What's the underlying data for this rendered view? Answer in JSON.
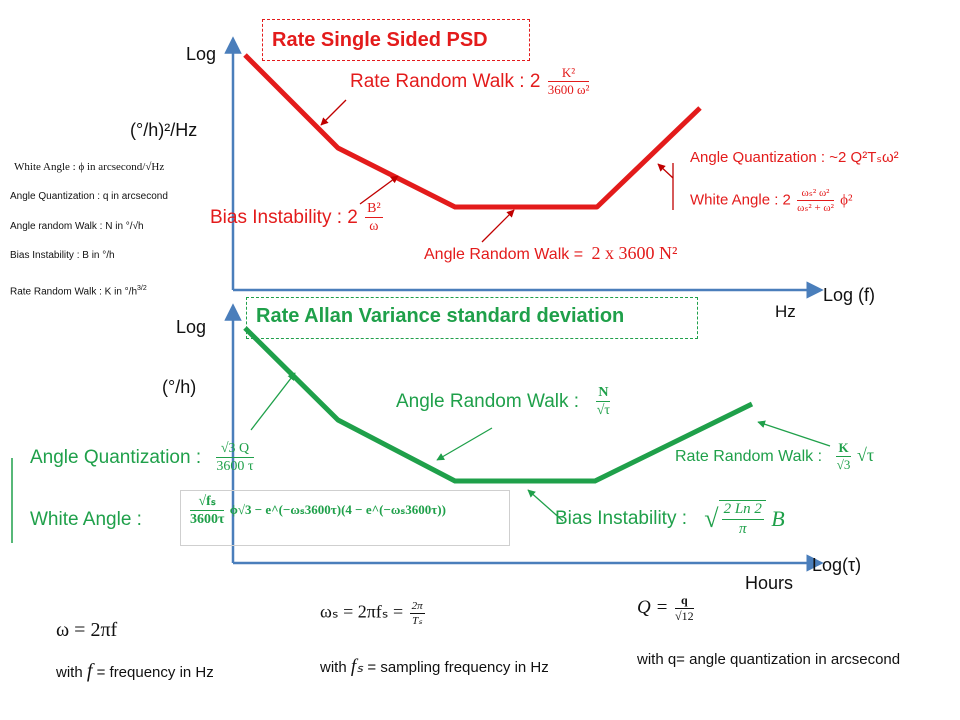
{
  "psd": {
    "title": "Rate Single Sided PSD",
    "y_axis_top": "Log",
    "y_axis_unit": "(°/h)²/Hz",
    "x_axis_label": "Log (f)",
    "x_axis_unit": "Hz",
    "rrw_prefix": "Rate Random Walk : 2",
    "rrw_num": "K²",
    "rrw_den": "3600 ω²",
    "bias_prefix": "Bias Instability : 2",
    "bias_num": "B²",
    "bias_den": "ω",
    "arw_label": "Angle Random Walk =",
    "arw_value": "2 x 3600 N²",
    "aq_label": "Angle Quantization : ~2 Q²Tₛω²",
    "wa_prefix": "White Angle : 2",
    "wa_num": "ωₛ² ω²",
    "wa_den": "ωₛ² + ω²",
    "wa_suffix": "ϕ²"
  },
  "legend": {
    "white_angle": "White Angle : ϕ in arcsecond/√Hz",
    "angle_quant": "Angle Quantization : q in arcsecond",
    "angle_rw": "Angle random Walk : N in °/√h",
    "bias_inst": "Bias Instability : B in °/h",
    "rate_rw": "Rate Random Walk : K in °/h",
    "rate_rw_exp": "3/2"
  },
  "allan": {
    "title": "Rate Allan Variance standard deviation",
    "y_axis_top": "Log",
    "y_axis_unit": "(°/h)",
    "x_axis_label": "Log(τ)",
    "x_axis_unit": "Hours",
    "arw_label": "Angle Random Walk :",
    "arw_num": "N",
    "arw_den": "√τ",
    "aq_label": "Angle Quantization :",
    "aq_num": "√3 Q",
    "aq_den": "3600 τ",
    "wa_label": "White Angle :",
    "wa_num": "√fₛ",
    "wa_den": "3600τ",
    "wa_rest": "ϕ√3 − e^(−ωₛ3600τ)(4 − e^(−ωₛ3600τ))",
    "rrw_label": "Rate Random Walk :",
    "rrw_num": "K",
    "rrw_den": "√3",
    "rrw_suffix": "√τ",
    "bias_label": "Bias Instability :",
    "bias_formula_num": "2 Ln 2",
    "bias_formula_den": "π",
    "bias_formula_var": "B"
  },
  "footer": {
    "omega_eq": "ω = 2πf",
    "omega_note_pre": "with",
    "omega_note_var": "f",
    "omega_note_post": "= frequency in Hz",
    "omegas_eq": "ωₛ = 2πfₛ =",
    "omegas_num": "2π",
    "omegas_den": "Tₛ",
    "fs_note_pre": "with",
    "fs_note_var": "fₛ",
    "fs_note_post": "= sampling frequency in Hz",
    "q_eq": "Q =",
    "q_num": "q",
    "q_den": "√12",
    "q_note": "with q= angle quantization in arcsecond"
  },
  "colors": {
    "psd_line": "#e31b1b",
    "allan_line": "#1fa04a",
    "axis": "#4a7ebb",
    "pointer_red": "#c00000",
    "pointer_green": "#1fa04a"
  }
}
